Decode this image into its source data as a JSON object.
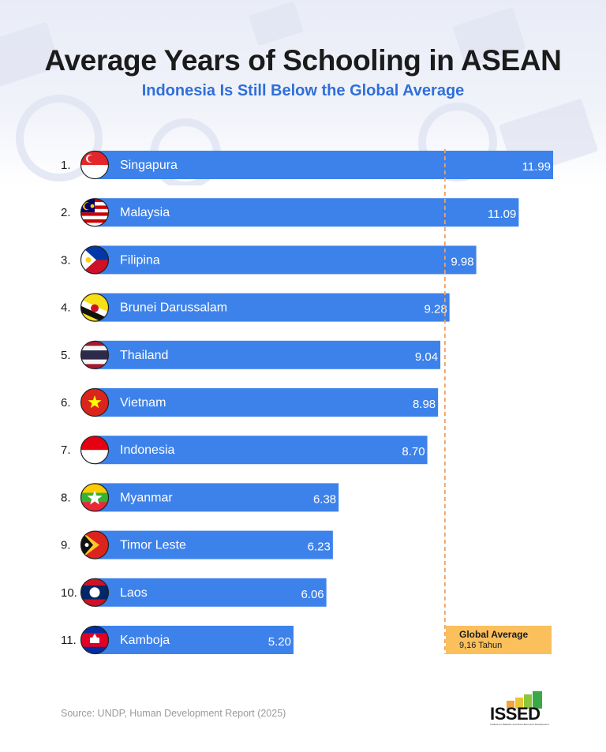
{
  "title": "Average Years of Schooling in ASEAN",
  "subtitle": "Indonesia Is Still Below the Global Average",
  "chart_data": {
    "type": "bar",
    "orientation": "horizontal",
    "unit": "years",
    "xlim": [
      0,
      11.99
    ],
    "categories": [
      "Singapura",
      "Malaysia",
      "Filipina",
      "Brunei Darussalam",
      "Thailand",
      "Vietnam",
      "Indonesia",
      "Myanmar",
      "Timor Leste",
      "Laos",
      "Kamboja"
    ],
    "ranks": [
      "1.",
      "2.",
      "3.",
      "4.",
      "5.",
      "6.",
      "7.",
      "8.",
      "9.",
      "10.",
      "11."
    ],
    "values": [
      11.99,
      11.09,
      9.98,
      9.28,
      9.04,
      8.98,
      8.7,
      6.38,
      6.23,
      6.06,
      5.2
    ],
    "value_labels": [
      "11.99",
      "11.09",
      "9.98",
      "9.28",
      "9.04",
      "8.98",
      "8.70",
      "6.38",
      "6.23",
      "6.06",
      "5.20"
    ],
    "flags": [
      "singapore-flag-icon",
      "malaysia-flag-icon",
      "philippines-flag-icon",
      "brunei-flag-icon",
      "thailand-flag-icon",
      "vietnam-flag-icon",
      "indonesia-flag-icon",
      "myanmar-flag-icon",
      "timor-leste-flag-icon",
      "laos-flag-icon",
      "cambodia-flag-icon"
    ],
    "reference_line": {
      "value": 9.16,
      "label": "Global Average",
      "value_label": "9,16 Tahun",
      "style": "dashed",
      "color": "#f0a060"
    },
    "bar_color": "#3d82ea",
    "label_color": "#ffffff"
  },
  "source": "Source: UNDP, Human Development Report (2025)",
  "logo": {
    "text": "ISSED",
    "caption": "Institute for Statistics and Socio-Economic Development",
    "colors": [
      "#f2a33a",
      "#e8c63a",
      "#8cc63f",
      "#3aa845"
    ]
  }
}
